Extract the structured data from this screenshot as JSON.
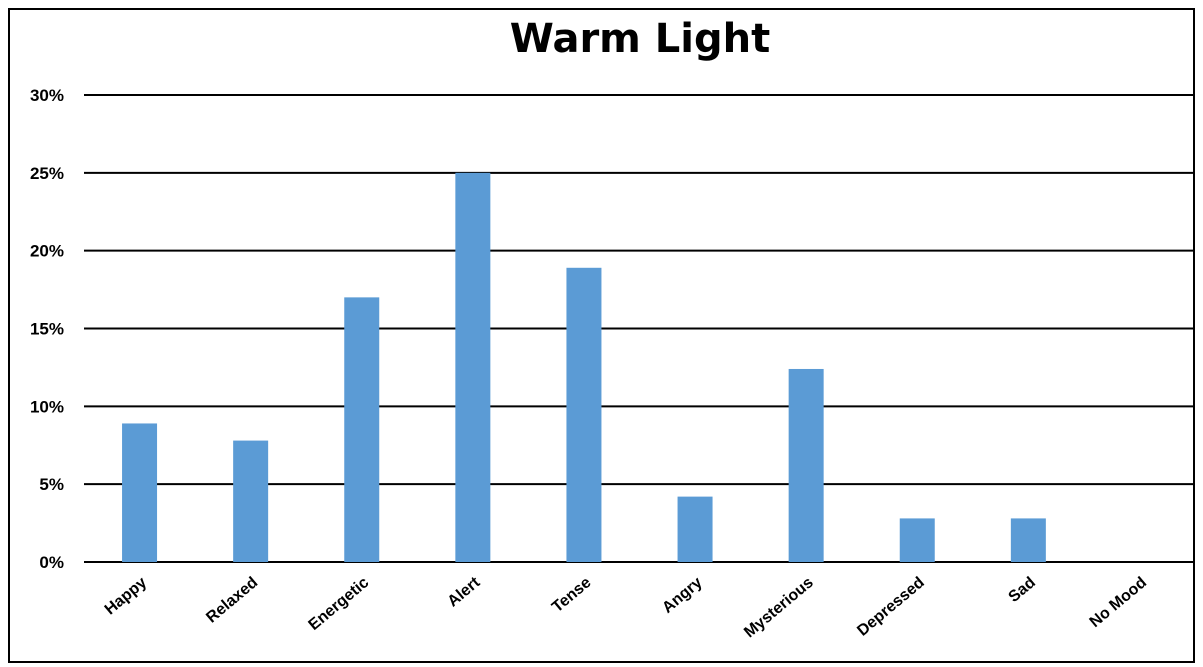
{
  "chart_data": {
    "type": "bar",
    "title": "Warm Light",
    "xlabel": "",
    "ylabel": "",
    "categories": [
      "Happy",
      "Relaxed",
      "Energetic",
      "Alert",
      "Tense",
      "Angry",
      "Mysterious",
      "Depressed",
      "Sad",
      "No Mood"
    ],
    "values": [
      8.9,
      7.8,
      17.0,
      25.0,
      18.9,
      4.2,
      12.4,
      2.8,
      2.8,
      0
    ],
    "y_ticks": [
      "0%",
      "5%",
      "10%",
      "15%",
      "20%",
      "25%",
      "30%"
    ],
    "ylim": [
      0,
      30
    ],
    "grid": true,
    "legend": "none",
    "bar_color": "#5b9bd5"
  }
}
